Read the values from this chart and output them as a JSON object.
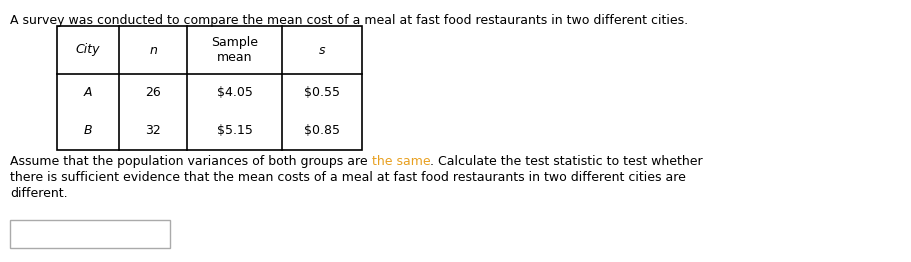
{
  "title": "A survey was conducted to compare the mean cost of a meal at fast food restaurants in two different cities.",
  "title_fontsize": 9.0,
  "table_headers": [
    "City",
    "n",
    "Sample\nmean",
    "s"
  ],
  "table_col_headers_italic": [
    true,
    true,
    false,
    true
  ],
  "table_rows": [
    [
      "A",
      "26",
      "$4.05",
      "$0.55"
    ],
    [
      "B",
      "32",
      "$5.15",
      "$0.85"
    ]
  ],
  "para_line1_before": "Assume that the population variances of both groups are ",
  "para_highlight": "the same",
  "para_line1_after": ". Calculate the test statistic to test whether",
  "para_line2": "there is sufficient evidence that the mean costs of a meal at fast food restaurants in two different cities are",
  "para_line3": "different.",
  "para_fontsize": 9.0,
  "highlight_color": "#e8a020",
  "background_color": "#ffffff",
  "text_color": "#000000",
  "table_line_color": "#000000",
  "fig_width": 9.11,
  "fig_height": 2.62,
  "dpi": 100
}
